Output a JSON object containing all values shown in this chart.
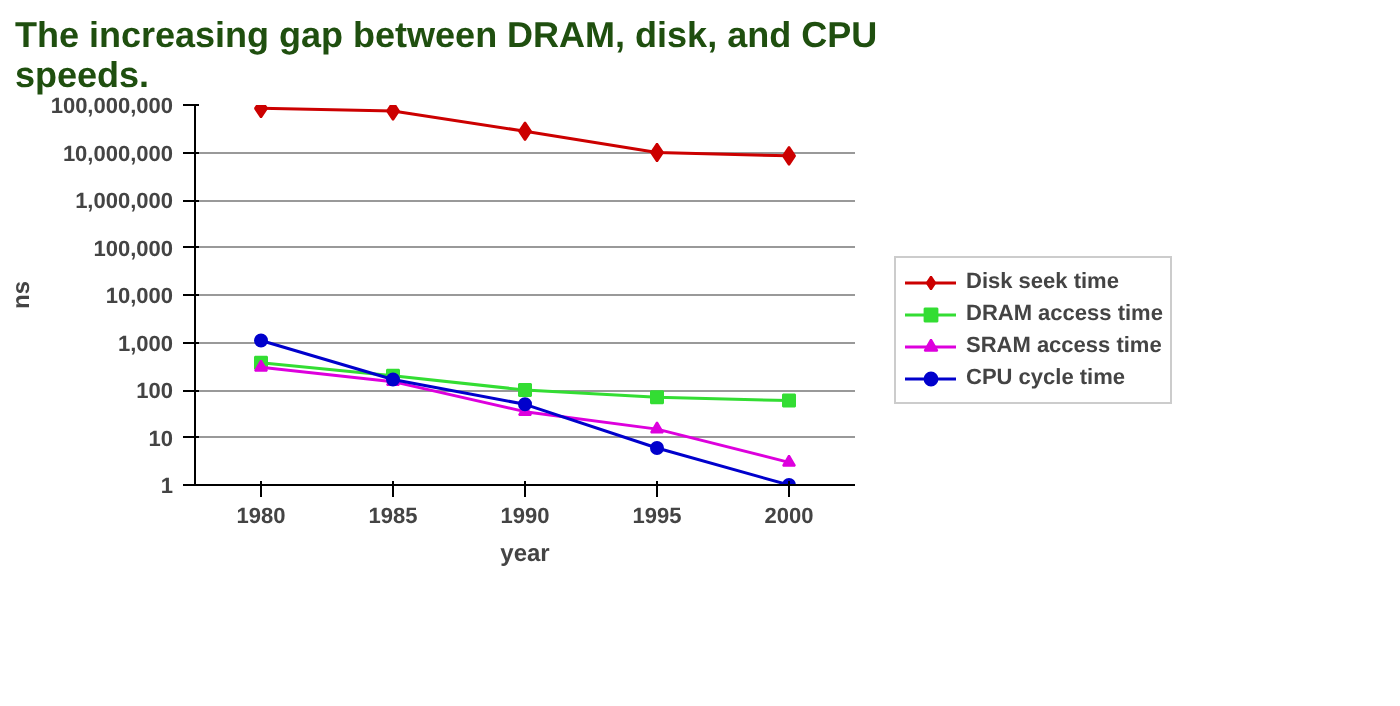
{
  "chart_data": {
    "type": "line",
    "title": "The increasing gap between DRAM, disk, and CPU speeds.",
    "xlabel": "year",
    "ylabel": "ns",
    "categories": [
      "1980",
      "1985",
      "1990",
      "1995",
      "2000"
    ],
    "series": [
      {
        "name": "Disk seek time",
        "color": "#cc0000",
        "marker": "diamond",
        "values": [
          85000000,
          75000000,
          28000000,
          10000000,
          8500000
        ]
      },
      {
        "name": "DRAM access time",
        "color": "#33dd33",
        "marker": "square",
        "values": [
          375,
          200,
          100,
          70,
          60
        ]
      },
      {
        "name": "SRAM access time",
        "color": "#dd00dd",
        "marker": "triangle",
        "values": [
          300,
          150,
          35,
          15,
          3
        ]
      },
      {
        "name": "CPU cycle time",
        "color": "#0000cc",
        "marker": "circle",
        "values": [
          1100,
          166,
          50,
          6,
          1
        ]
      }
    ],
    "log": "y",
    "ylim": [
      1,
      100000000
    ],
    "yticks": [
      1,
      10,
      100,
      {
        "value": 1000,
        "label": "1,000"
      },
      {
        "value": 10000,
        "label": "10,000"
      },
      {
        "value": 100000,
        "label": "100,000"
      },
      {
        "value": 1000000,
        "label": "1,000,000"
      },
      {
        "value": 10000000,
        "label": "10,000,000"
      },
      {
        "value": 100000000,
        "label": "100,000,000"
      }
    ],
    "grid": "y",
    "legend": "right",
    "line_style": "solid"
  }
}
